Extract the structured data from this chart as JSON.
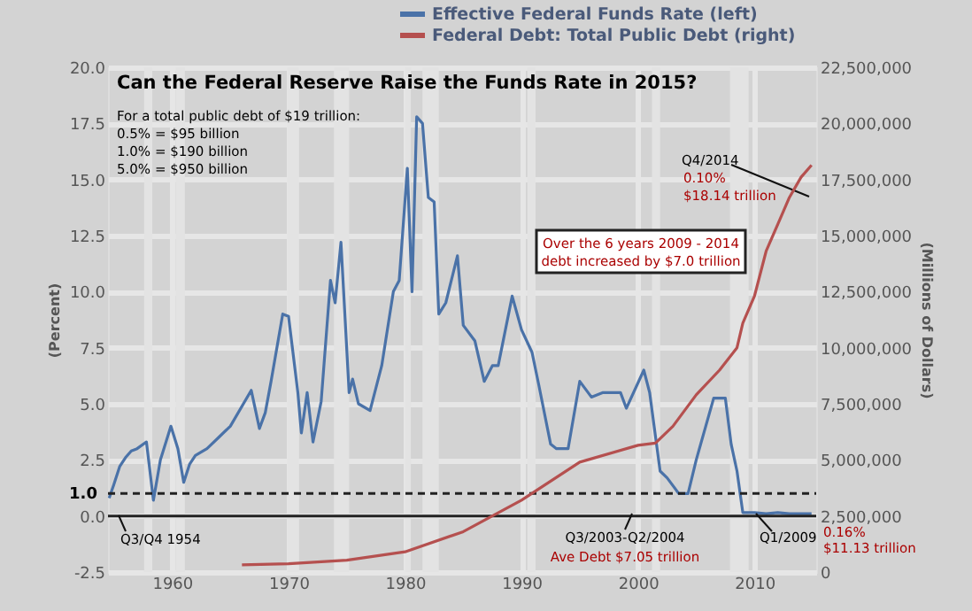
{
  "chart_data": {
    "type": "line",
    "title": "Can the Federal Reserve Raise the Funds Rate in 2015?",
    "ylabel": "(Percent)",
    "y2label": "(Millions of Dollars)",
    "xlim": [
      1954.5,
      2015.3
    ],
    "xticks": [
      1960,
      1970,
      1980,
      1990,
      2000,
      2010
    ],
    "ylim": [
      -2.5,
      20
    ],
    "yticks": [
      -2.5,
      {
        "value": 0,
        "label": "0.0"
      },
      2.5,
      {
        "value": 5,
        "label": "5.0"
      },
      7.5,
      {
        "value": 10,
        "label": "10.0"
      },
      12.5,
      {
        "value": 15,
        "label": "15.0"
      },
      17.5,
      {
        "value": 20,
        "label": "20.0"
      }
    ],
    "y2lim": [
      0,
      22500000
    ],
    "y2ticks": [
      0,
      {
        "value": 2500000,
        "label": "2,500,000"
      },
      {
        "value": 5000000,
        "label": "5,000,000"
      },
      {
        "value": 7500000,
        "label": "7,500,000"
      },
      {
        "value": 10000000,
        "label": "10,000,000"
      },
      {
        "value": 12500000,
        "label": "12,500,000"
      },
      {
        "value": 15000000,
        "label": "15,000,000"
      },
      {
        "value": 17500000,
        "label": "17,500,000"
      },
      {
        "value": 20000000,
        "label": "20,000,000"
      },
      {
        "value": 22500000,
        "label": "22,500,000"
      }
    ],
    "grid": true,
    "legend": "top",
    "series": [
      {
        "name": "Effective Federal Funds Rate (left)",
        "color": "#4a72a8",
        "x": [
          1954.6,
          1955,
          1955.5,
          1956,
          1956.5,
          1957,
          1957.8,
          1958.4,
          1959,
          1959.9,
          1960.5,
          1961,
          1961.5,
          1962,
          1963,
          1964,
          1965,
          1966.8,
          1967.5,
          1968,
          1968.5,
          1969.5,
          1970,
          1970.8,
          1971.1,
          1971.6,
          1972.1,
          1972.8,
          1973.6,
          1974,
          1974.5,
          1975.2,
          1975.5,
          1976,
          1977,
          1978,
          1979,
          1979.5,
          1980.2,
          1980.6,
          1981,
          1981.5,
          1982,
          1982.5,
          1982.9,
          1983.5,
          1984.5,
          1985,
          1986,
          1986.8,
          1987.5,
          1988,
          1989.2,
          1990,
          1990.9,
          1991.5,
          1992.5,
          1993,
          1994,
          1995,
          1996,
          1997,
          1998.5,
          1999,
          2000.5,
          2001,
          2001.9,
          2002.5,
          2003.5,
          2004.3,
          2005,
          2006.5,
          2007.5,
          2008,
          2008.5,
          2009,
          2010,
          2011,
          2012,
          2013,
          2014,
          2014.9
        ],
        "values": [
          0.8,
          1.4,
          2.2,
          2.6,
          2.9,
          3.0,
          3.3,
          0.7,
          2.5,
          4.0,
          3.0,
          1.5,
          2.3,
          2.7,
          3.0,
          3.5,
          4.0,
          5.6,
          3.9,
          4.6,
          6.0,
          9.0,
          8.9,
          5.5,
          3.7,
          5.5,
          3.3,
          5.1,
          10.5,
          9.5,
          12.2,
          5.5,
          6.1,
          5.0,
          4.7,
          6.7,
          10.0,
          10.5,
          15.5,
          10.0,
          17.8,
          17.5,
          14.2,
          14.0,
          9.0,
          9.5,
          11.6,
          8.5,
          7.8,
          6.0,
          6.7,
          6.7,
          9.8,
          8.3,
          7.3,
          5.8,
          3.2,
          3.0,
          3.0,
          6.0,
          5.3,
          5.5,
          5.5,
          4.8,
          6.5,
          5.5,
          2.0,
          1.7,
          1.0,
          1.0,
          2.5,
          5.25,
          5.25,
          3.2,
          2.0,
          0.15,
          0.15,
          0.1,
          0.15,
          0.1,
          0.1,
          0.1
        ]
      },
      {
        "name": "Federal Debt: Total Public Debt (right)",
        "color": "#b5504f",
        "axis": "y2",
        "x": [
          1966,
          1970,
          1975,
          1980,
          1985,
          1990,
          1995,
          2000,
          2001.5,
          2003,
          2005,
          2007,
          2008.5,
          2009,
          2010,
          2011,
          2012,
          2013,
          2014,
          2014.9
        ],
        "values": [
          320000,
          370000,
          530000,
          900000,
          1800000,
          3200000,
          4900000,
          5650000,
          5750000,
          6500000,
          7900000,
          9000000,
          10000000,
          11100000,
          12300000,
          14300000,
          15500000,
          16700000,
          17600000,
          18140000
        ]
      }
    ],
    "bands": [
      {
        "axis": "x",
        "from": 1957.6,
        "to": 1958.3,
        "color": "#e3e3e3"
      },
      {
        "axis": "x",
        "from": 1960.3,
        "to": 1961.1,
        "color": "#e3e3e3"
      },
      {
        "axis": "x",
        "from": 1969.9,
        "to": 1970.9,
        "color": "#e3e3e3"
      },
      {
        "axis": "x",
        "from": 1973.9,
        "to": 1975.2,
        "color": "#e3e3e3"
      },
      {
        "axis": "x",
        "from": 1980.0,
        "to": 1980.5,
        "color": "#e3e3e3"
      },
      {
        "axis": "x",
        "from": 1981.5,
        "to": 1982.9,
        "color": "#e3e3e3"
      },
      {
        "axis": "x",
        "from": 1990.5,
        "to": 1991.2,
        "color": "#e3e3e3"
      },
      {
        "axis": "x",
        "from": 2001.2,
        "to": 2001.9,
        "color": "#e3e3e3"
      },
      {
        "axis": "x",
        "from": 2007.9,
        "to": 2009.5,
        "color": "#e3e3e3"
      }
    ],
    "ref_lines": [
      {
        "axis": "y",
        "value": 1.0,
        "label": "1.0",
        "color": "#222222",
        "line_style": "dashed"
      },
      {
        "axis": "y",
        "value": 0,
        "label": null,
        "color": "#222222",
        "line_style": "solid"
      }
    ],
    "annotations": [
      "For a total public debt of $19 trillion:",
      "0.5% = $95 billion",
      "1.0% = $190 billion",
      "5.0% = $950 billion",
      "Q4/2014",
      "0.10%",
      "$18.14 trillion",
      "Over the 6 years 2009 - 2014",
      "debt increased by $7.0 trillion",
      "Q3/Q4 1954",
      "Q3/2003-Q2/2004",
      "Ave Debt $7.05 trillion",
      "Q1/2009",
      "0.16%",
      "$11.13 trillion"
    ]
  }
}
